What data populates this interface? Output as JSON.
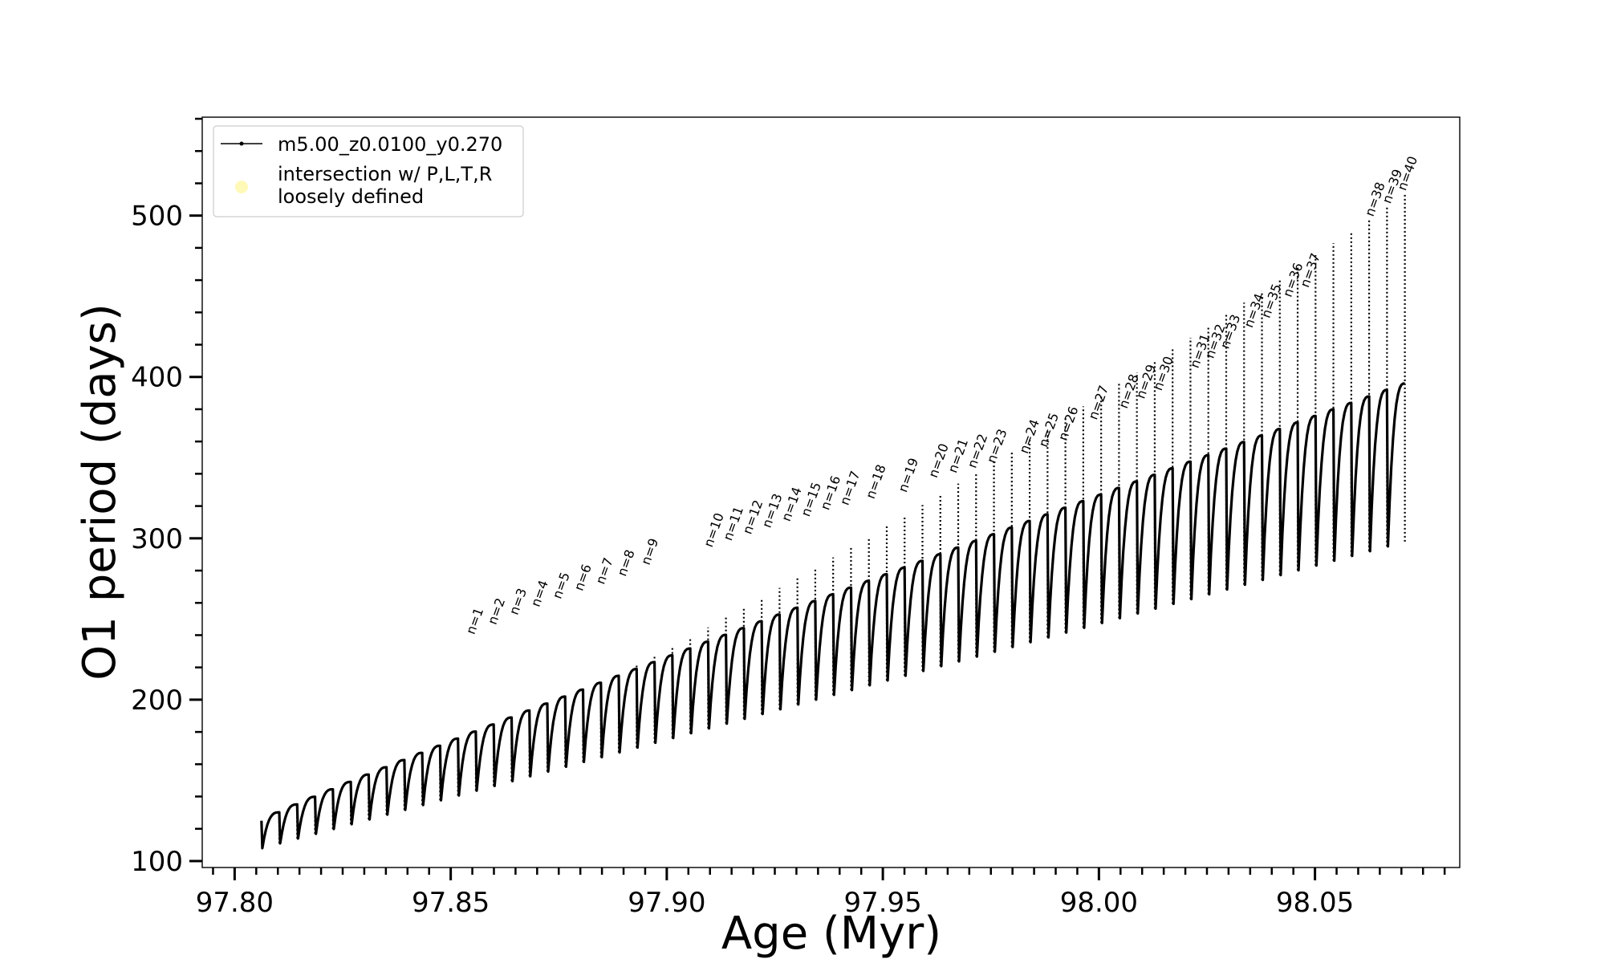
{
  "chart_data": {
    "type": "line",
    "xlabel": "Age (Myr)",
    "ylabel": "O1 period (days)",
    "xlim": [
      97.7925,
      98.0835
    ],
    "ylim": [
      96,
      561
    ],
    "x_ticks": [
      97.8,
      97.85,
      97.9,
      97.95,
      98.0,
      98.05
    ],
    "x_tick_labels": [
      "97.80",
      "97.85",
      "97.90",
      "97.95",
      "98.00",
      "98.05"
    ],
    "x_minor_tick_step": 0.005,
    "y_ticks": [
      100,
      200,
      300,
      400,
      500
    ],
    "y_tick_labels": [
      "100",
      "200",
      "300",
      "400",
      "500"
    ],
    "y_minor_tick_step": 20,
    "grid": false,
    "legend_position": "top-left",
    "legend": [
      {
        "label": "m5.00_z0.0100_y0.270",
        "marker": "line-dot",
        "color": "#000000"
      },
      {
        "label": "intersection w/ P,L,T,R\nloosely defined",
        "marker": "circle",
        "color": "#fff8b0"
      }
    ],
    "series": [
      {
        "name": "m5.00_z0.0100_y0.270",
        "color": "#000000",
        "description_of_shape": "sawtooth loops: each cycle drops to a minimum then recovers, with a spike to a maximum",
        "start": {
          "x": 97.8062,
          "y_top": 125,
          "y_bottom": 108
        },
        "end": {
          "x": 98.0708,
          "y_top": 396,
          "y_bottom": 298
        },
        "cycle_mins": {
          "start": 108,
          "end": 298
        },
        "cycle_maxes": {
          "start": 125,
          "end": 513
        },
        "cycle_count": 64
      }
    ],
    "annotations": [
      {
        "text": "n=1",
        "x": 97.8547,
        "y": 238
      },
      {
        "text": "n=2",
        "x": 97.8597,
        "y": 244
      },
      {
        "text": "n=3",
        "x": 97.8647,
        "y": 250
      },
      {
        "text": "n=4",
        "x": 97.8697,
        "y": 255
      },
      {
        "text": "n=5",
        "x": 97.8747,
        "y": 260
      },
      {
        "text": "n=6",
        "x": 97.8797,
        "y": 265
      },
      {
        "text": "n=7",
        "x": 97.8847,
        "y": 269
      },
      {
        "text": "n=8",
        "x": 97.8897,
        "y": 274
      },
      {
        "text": "n=9",
        "x": 97.8952,
        "y": 281
      },
      {
        "text": "n=10",
        "x": 97.9097,
        "y": 292
      },
      {
        "text": "n=11",
        "x": 97.9142,
        "y": 296
      },
      {
        "text": "n=12",
        "x": 97.9187,
        "y": 300
      },
      {
        "text": "n=13",
        "x": 97.9232,
        "y": 304
      },
      {
        "text": "n=14",
        "x": 97.9277,
        "y": 308
      },
      {
        "text": "n=15",
        "x": 97.9322,
        "y": 311
      },
      {
        "text": "n=16",
        "x": 97.9367,
        "y": 315
      },
      {
        "text": "n=17",
        "x": 97.9412,
        "y": 318
      },
      {
        "text": "n=18",
        "x": 97.9472,
        "y": 322
      },
      {
        "text": "n=19",
        "x": 97.9547,
        "y": 326
      },
      {
        "text": "n=20",
        "x": 97.9617,
        "y": 335
      },
      {
        "text": "n=21",
        "x": 97.9662,
        "y": 338
      },
      {
        "text": "n=22",
        "x": 97.9707,
        "y": 341
      },
      {
        "text": "n=23",
        "x": 97.9752,
        "y": 344
      },
      {
        "text": "n=24",
        "x": 97.9827,
        "y": 350
      },
      {
        "text": "n=25",
        "x": 97.9872,
        "y": 354
      },
      {
        "text": "n=26",
        "x": 97.9917,
        "y": 358
      },
      {
        "text": "n=27",
        "x": 97.9987,
        "y": 371
      },
      {
        "text": "n=28",
        "x": 98.0057,
        "y": 378
      },
      {
        "text": "n=29",
        "x": 98.0097,
        "y": 384
      },
      {
        "text": "n=30",
        "x": 98.0137,
        "y": 389
      },
      {
        "text": "n=31",
        "x": 98.0222,
        "y": 403
      },
      {
        "text": "n=32",
        "x": 98.0257,
        "y": 409
      },
      {
        "text": "n=33",
        "x": 98.0292,
        "y": 415
      },
      {
        "text": "n=34",
        "x": 98.0347,
        "y": 428
      },
      {
        "text": "n=35",
        "x": 98.0387,
        "y": 434
      },
      {
        "text": "n=36",
        "x": 98.0437,
        "y": 447
      },
      {
        "text": "n=37",
        "x": 98.0477,
        "y": 453
      },
      {
        "text": "n=38",
        "x": 98.0627,
        "y": 497
      },
      {
        "text": "n=39",
        "x": 98.0667,
        "y": 505
      },
      {
        "text": "n=40",
        "x": 98.0702,
        "y": 513
      }
    ]
  }
}
